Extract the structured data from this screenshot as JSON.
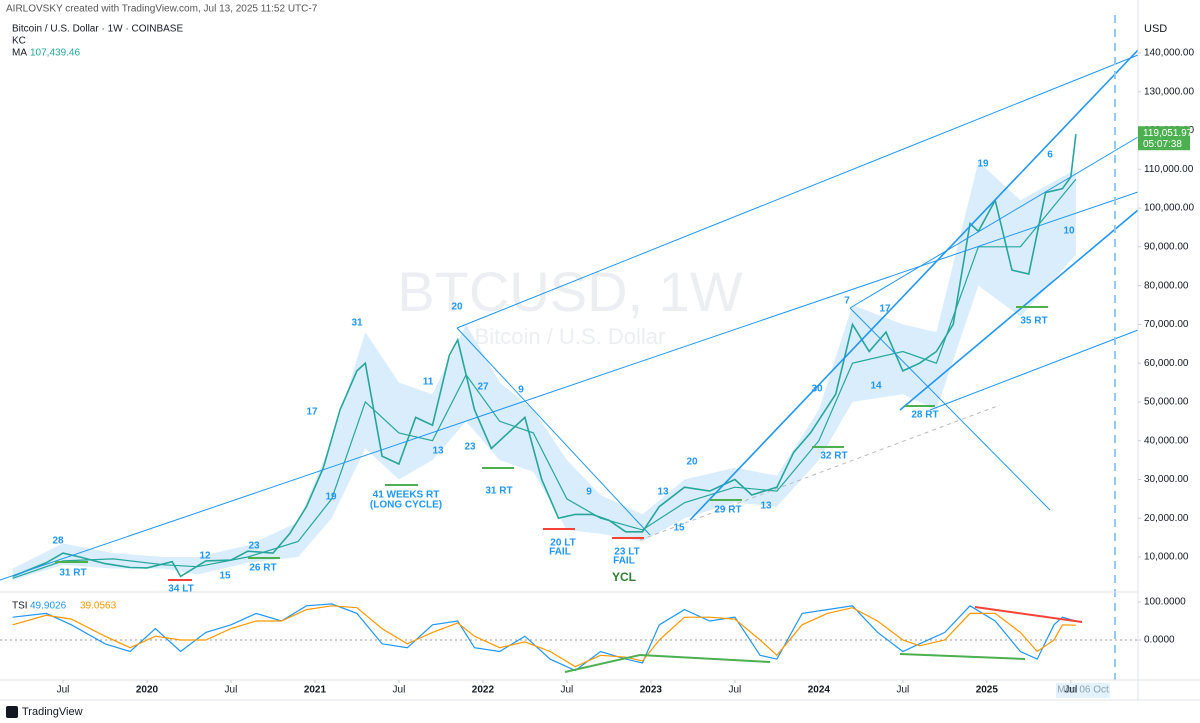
{
  "header": {
    "credit": "AIRLOVSKY created with TradingView.com, Jul 13, 2025 11:52 UTC-7"
  },
  "chart_data": [
    {
      "type": "line",
      "title": "Bitcoin / U.S. Dollar · 1W · COINBASE",
      "watermark": "BTCUSD, 1W",
      "watermark_subtitle": "Bitcoin / U.S. Dollar",
      "currency": "USD",
      "xlim": [
        2019.125,
        2025.9
      ],
      "xticks": [
        {
          "value": 2019.5,
          "label": "Jul"
        },
        2020,
        {
          "value": 2020.5,
          "label": "Jul"
        },
        2021,
        {
          "value": 2021.5,
          "label": "Jul"
        },
        2022,
        {
          "value": 2022.5,
          "label": "Jul"
        },
        2023,
        {
          "value": 2023.5,
          "label": "Jul"
        },
        2024,
        {
          "value": 2024.5,
          "label": "Jul"
        },
        2025,
        {
          "value": 2025.5,
          "label": "Jul"
        }
      ],
      "ylim": [
        1490,
        149800
      ],
      "yticks": [
        {
          "value": 10000,
          "label": "10,000.00"
        },
        {
          "value": 20000,
          "label": "20,000.00"
        },
        {
          "value": 30000,
          "label": "30,000.00"
        },
        {
          "value": 40000,
          "label": "40,000.00"
        },
        {
          "value": 50000,
          "label": "50,000.00"
        },
        {
          "value": 60000,
          "label": "60,000.00"
        },
        {
          "value": 70000,
          "label": "70,000.00"
        },
        {
          "value": 80000,
          "label": "80,000.00"
        },
        {
          "value": 90000,
          "label": "90,000.00"
        },
        {
          "value": 100000,
          "label": "100,000.00"
        },
        {
          "value": 110000,
          "label": "110,000.00"
        },
        {
          "value": 120000,
          "label": "120,000.00"
        },
        {
          "value": 130000,
          "label": "130,000.00"
        },
        {
          "value": 140000,
          "label": "140,000.00"
        }
      ],
      "color": "#26a69a",
      "x": [
        2019.2,
        2019.4,
        2019.5,
        2019.6,
        2019.75,
        2019.9,
        2020.0,
        2020.15,
        2020.2,
        2020.35,
        2020.5,
        2020.6,
        2020.75,
        2020.85,
        2020.95,
        2021.05,
        2021.15,
        2021.25,
        2021.3,
        2021.4,
        2021.5,
        2021.6,
        2021.7,
        2021.8,
        2021.85,
        2021.95,
        2022.05,
        2022.15,
        2022.25,
        2022.35,
        2022.45,
        2022.55,
        2022.65,
        2022.75,
        2022.85,
        2022.95,
        2023.05,
        2023.2,
        2023.35,
        2023.5,
        2023.6,
        2023.75,
        2023.85,
        2023.95,
        2024.1,
        2024.2,
        2024.3,
        2024.4,
        2024.5,
        2024.6,
        2024.7,
        2024.8,
        2024.9,
        2024.95,
        2025.05,
        2025.15,
        2025.25,
        2025.35,
        2025.45,
        2025.5,
        2025.53
      ],
      "values": [
        5000,
        8500,
        11000,
        10000,
        8300,
        7300,
        7200,
        8800,
        5000,
        9000,
        9200,
        11500,
        11000,
        16000,
        23000,
        33000,
        48000,
        58000,
        60000,
        36000,
        34000,
        46000,
        44000,
        62000,
        66000,
        48000,
        38000,
        42000,
        46000,
        30000,
        20000,
        21000,
        21000,
        19500,
        16500,
        16500,
        23000,
        28000,
        27000,
        30000,
        26000,
        28000,
        37000,
        42000,
        52000,
        70000,
        63000,
        68000,
        58000,
        60000,
        63000,
        70000,
        96000,
        94000,
        102000,
        84000,
        83000,
        104000,
        105000,
        108000,
        119051.97
      ],
      "series": [
        {
          "name": "KC",
          "color": "#bbdefb",
          "x": [
            2019.2,
            2019.5,
            2019.8,
            2020.1,
            2020.3,
            2020.6,
            2020.9,
            2021.1,
            2021.3,
            2021.5,
            2021.7,
            2021.9,
            2022.1,
            2022.3,
            2022.5,
            2022.7,
            2022.95,
            2023.2,
            2023.5,
            2023.75,
            2024.0,
            2024.2,
            2024.5,
            2024.7,
            2024.95,
            2025.2,
            2025.53
          ],
          "upper": [
            7000,
            13500,
            11000,
            10000,
            10000,
            13000,
            19000,
            40000,
            68000,
            55000,
            52000,
            70000,
            55000,
            48000,
            35000,
            26000,
            21000,
            30000,
            33000,
            31000,
            48000,
            75000,
            70000,
            68000,
            112000,
            102000,
            110000
          ],
          "lower": [
            4000,
            8000,
            7000,
            7000,
            5500,
            8500,
            10000,
            20000,
            38000,
            30000,
            35000,
            45000,
            35000,
            32000,
            17000,
            16000,
            14000,
            20000,
            24000,
            23000,
            35000,
            50000,
            52000,
            48000,
            80000,
            72000,
            88000
          ]
        },
        {
          "name": "MA",
          "color": "#26a69a",
          "x": [
            2019.2,
            2019.5,
            2019.8,
            2020.1,
            2020.3,
            2020.6,
            2020.9,
            2021.1,
            2021.3,
            2021.5,
            2021.7,
            2021.9,
            2022.1,
            2022.3,
            2022.5,
            2022.7,
            2022.95,
            2023.2,
            2023.5,
            2023.75,
            2024.0,
            2024.2,
            2024.5,
            2024.7,
            2024.95,
            2025.2,
            2025.53
          ],
          "values": [
            4500,
            9000,
            9500,
            8000,
            7500,
            10000,
            14000,
            25000,
            50000,
            42000,
            40000,
            57000,
            45000,
            42000,
            25000,
            20000,
            17000,
            24000,
            28000,
            27000,
            40000,
            60000,
            63000,
            60000,
            90000,
            90000,
            107439.46
          ],
          "last_value": {
            "value": 107439.46,
            "label": "107,439.46"
          }
        }
      ],
      "last_price": {
        "value": 119051.97,
        "label": "119,051.97"
      },
      "countdown": "05:07:38",
      "crosshair_date": "Mon 06 Oct",
      "annotations": [
        "28",
        "31 RT",
        "34 LT",
        "12",
        "15",
        "23",
        "26 RT",
        "19",
        "17",
        "31",
        "41 WEEKS  RT",
        "(LONG CYCLE)",
        "11",
        "13",
        "20",
        "27",
        "23",
        "31 RT",
        "9",
        "9",
        "20 LT",
        "FAIL",
        "13",
        "20",
        "15",
        "29 RT",
        "13",
        "23 LT",
        "FAIL",
        "YCL",
        "30",
        "32 RT",
        "7",
        "17",
        "14",
        "28 RT",
        "19",
        "6",
        "10",
        "35 RT"
      ]
    },
    {
      "type": "line",
      "title": "TSI",
      "xlim": [
        2019.125,
        2025.9
      ],
      "ylim": [
        -105,
        121
      ],
      "yticks": [
        {
          "value": 100,
          "label": "100.0000"
        },
        {
          "value": 0,
          "label": "0.0000"
        }
      ],
      "x": [
        2019.2,
        2019.4,
        2019.55,
        2019.75,
        2019.9,
        2020.05,
        2020.2,
        2020.35,
        2020.5,
        2020.65,
        2020.8,
        2020.95,
        2021.1,
        2021.25,
        2021.4,
        2021.55,
        2021.7,
        2021.85,
        2021.95,
        2022.1,
        2022.25,
        2022.4,
        2022.55,
        2022.7,
        2022.85,
        2022.95,
        2023.05,
        2023.2,
        2023.35,
        2023.5,
        2023.65,
        2023.75,
        2023.9,
        2024.05,
        2024.2,
        2024.35,
        2024.5,
        2024.6,
        2024.75,
        2024.9,
        2025.05,
        2025.2,
        2025.3,
        2025.4,
        2025.45,
        2025.53
      ],
      "series": [
        {
          "color": "#2196f3",
          "values": [
            60,
            70,
            40,
            -10,
            -30,
            30,
            -30,
            20,
            40,
            70,
            50,
            90,
            95,
            70,
            -10,
            -20,
            40,
            50,
            -20,
            -30,
            10,
            -50,
            -80,
            -30,
            -50,
            -60,
            40,
            80,
            50,
            60,
            -40,
            -50,
            70,
            80,
            90,
            20,
            -30,
            -10,
            20,
            90,
            50,
            -30,
            -50,
            40,
            60,
            49.9026
          ]
        },
        {
          "color": "#ff9800",
          "values": [
            40,
            65,
            55,
            10,
            -20,
            10,
            0,
            0,
            30,
            50,
            50,
            80,
            90,
            85,
            30,
            -10,
            20,
            45,
            10,
            -20,
            -5,
            -30,
            -70,
            -40,
            -45,
            -55,
            0,
            60,
            60,
            55,
            0,
            -40,
            40,
            70,
            85,
            50,
            0,
            -15,
            0,
            70,
            70,
            20,
            -30,
            0,
            40,
            39.0563
          ]
        }
      ]
    }
  ],
  "footer": {
    "brand": "TradingView"
  }
}
